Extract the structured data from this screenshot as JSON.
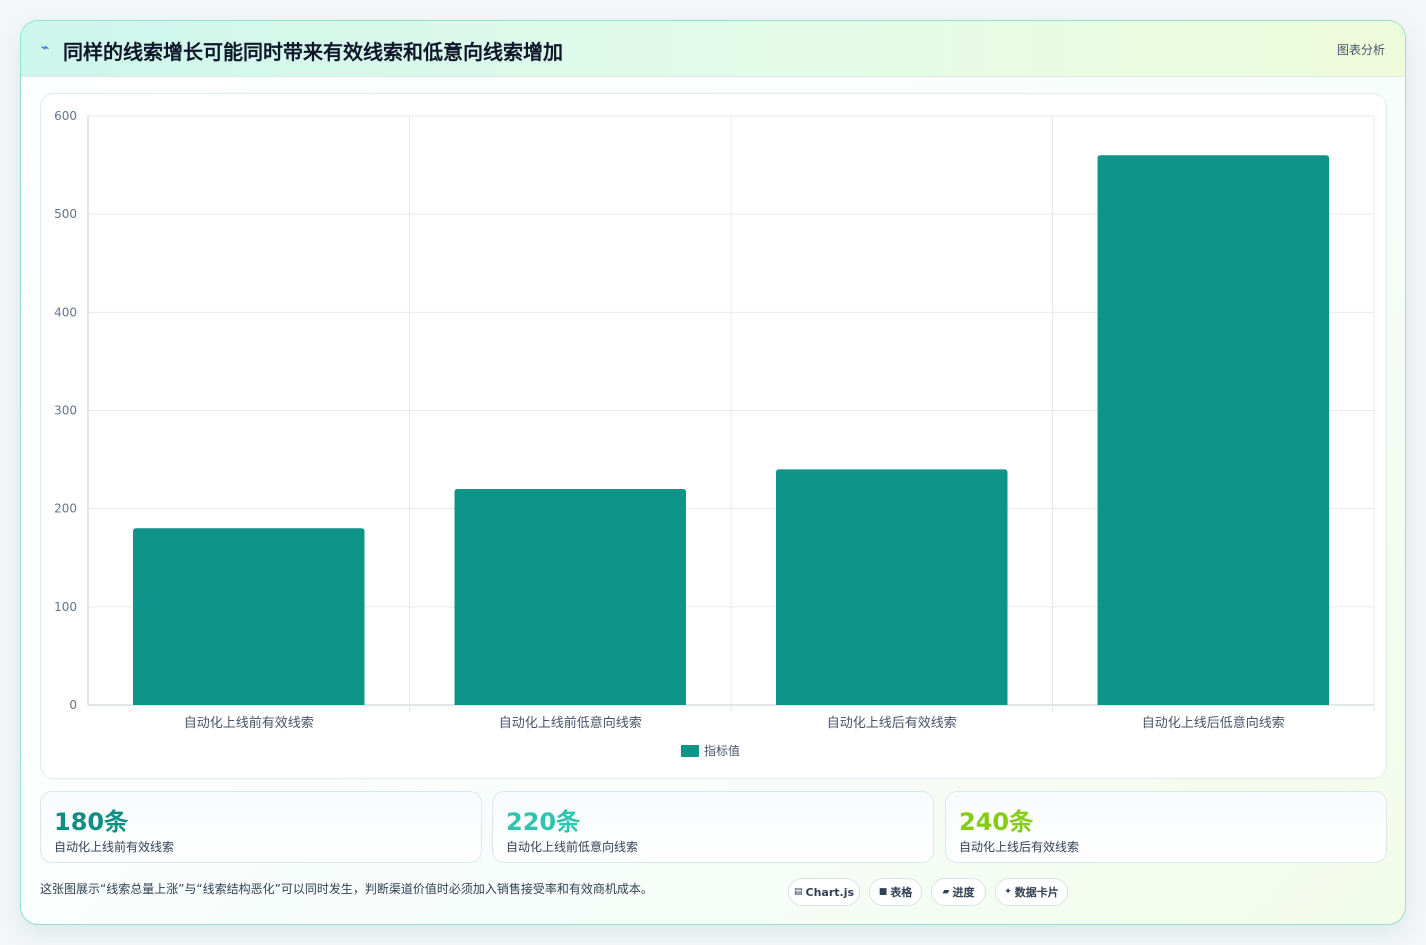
{
  "header": {
    "icon": "sparkline-icon",
    "title": "同样的线索增长可能同时带来有效线索和低意向线索增加",
    "tag": "图表分析"
  },
  "chart_data": {
    "type": "bar",
    "categories": [
      "自动化上线前有效线索",
      "自动化上线前低意向线索",
      "自动化上线后有效线索",
      "自动化上线后低意向线索"
    ],
    "series": [
      {
        "name": "指标值",
        "values": [
          180,
          220,
          240,
          560
        ],
        "color": "#0e9488"
      }
    ],
    "ylim": [
      0,
      600
    ],
    "yticks": [
      "0",
      "100",
      "200",
      "300",
      "400",
      "500",
      "600"
    ],
    "legend": "bottom",
    "grid": true
  },
  "stats": [
    {
      "value": "180条",
      "label": "自动化上线前有效线索",
      "color": "#0f8f82"
    },
    {
      "value": "220条",
      "label": "自动化上线前低意向线索",
      "color": "#2ec4b0"
    },
    {
      "value": "240条",
      "label": "自动化上线后有效线索",
      "color": "#84cc16"
    }
  ],
  "footer": {
    "text": "这张图展示“线索总量上涨”与“线索结构恶化”可以同时发生，判断渠道价值时必须加入销售接受率和有效商机成本。"
  },
  "chips": [
    {
      "icon": "chart-icon",
      "label": "Chart.js"
    },
    {
      "icon": "table-icon",
      "label": "表格"
    },
    {
      "icon": "progress-icon",
      "label": "进度"
    },
    {
      "icon": "card-icon",
      "label": "数据卡片"
    }
  ]
}
